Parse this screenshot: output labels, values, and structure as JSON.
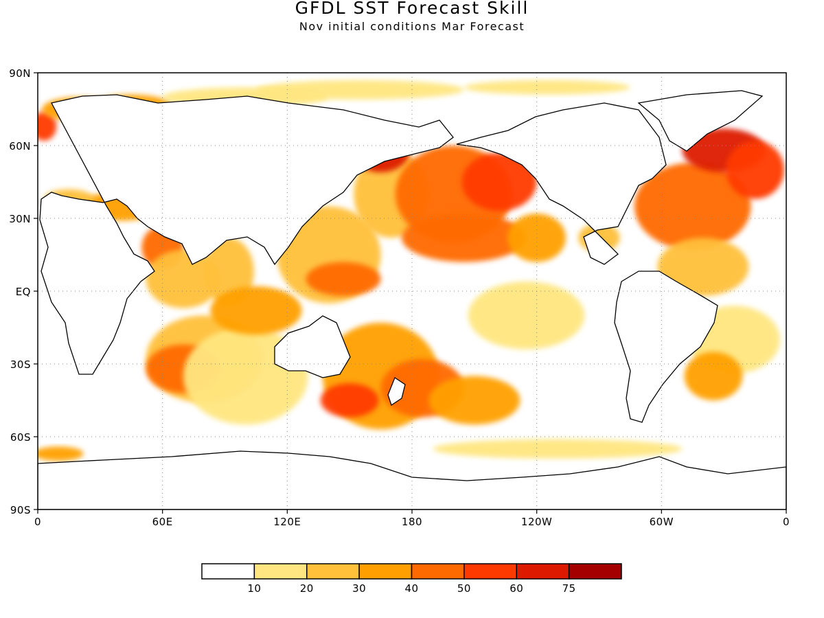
{
  "header": {
    "title": "GFDL SST Forecast Skill",
    "subtitle": "Nov initial conditions  Mar Forecast"
  },
  "axes": {
    "x_ticks": [
      "0",
      "60E",
      "120E",
      "180",
      "120W",
      "60W",
      "0"
    ],
    "y_ticks": [
      "90N",
      "60N",
      "30N",
      "EQ",
      "30S",
      "60S",
      "90S"
    ],
    "x_range": [
      0,
      360
    ],
    "y_range": [
      -90,
      90
    ],
    "grid": "dotted"
  },
  "colorbar": {
    "colors": [
      "#ffffff",
      "#ffe680",
      "#ffc03a",
      "#ffa000",
      "#ff6a00",
      "#ff3a00",
      "#dd1a00",
      "#a50000"
    ],
    "labels": [
      "10",
      "20",
      "30",
      "40",
      "50",
      "60",
      "75"
    ],
    "thresholds": [
      10,
      20,
      30,
      40,
      50,
      60,
      75
    ]
  },
  "map_data": {
    "variable": "SST forecast skill",
    "units": "",
    "blobs": [
      {
        "lon": 3,
        "lat": 68,
        "rx": 6,
        "ry": 6,
        "level": 5
      },
      {
        "lon": 20,
        "lat": 75,
        "rx": 18,
        "ry": 5,
        "level": 3
      },
      {
        "lon": 45,
        "lat": 75,
        "rx": 22,
        "ry": 6,
        "level": 3
      },
      {
        "lon": 100,
        "lat": 80,
        "rx": 40,
        "ry": 4,
        "level": 1
      },
      {
        "lon": 155,
        "lat": 83,
        "rx": 50,
        "ry": 4,
        "level": 1
      },
      {
        "lon": 245,
        "lat": 84,
        "rx": 40,
        "ry": 3,
        "level": 1
      },
      {
        "lon": 40,
        "lat": 35,
        "rx": 20,
        "ry": 6,
        "level": 3
      },
      {
        "lon": 15,
        "lat": 38,
        "rx": 12,
        "ry": 4,
        "level": 2
      },
      {
        "lon": 60,
        "lat": 18,
        "rx": 10,
        "ry": 9,
        "level": 4
      },
      {
        "lon": 70,
        "lat": 5,
        "rx": 18,
        "ry": 12,
        "level": 2
      },
      {
        "lon": 92,
        "lat": 8,
        "rx": 12,
        "ry": 14,
        "level": 2
      },
      {
        "lon": 80,
        "lat": -28,
        "rx": 28,
        "ry": 18,
        "level": 2
      },
      {
        "lon": 70,
        "lat": -32,
        "rx": 18,
        "ry": 10,
        "level": 4
      },
      {
        "lon": 100,
        "lat": -35,
        "rx": 30,
        "ry": 20,
        "level": 1
      },
      {
        "lon": 105,
        "lat": -8,
        "rx": 22,
        "ry": 10,
        "level": 3
      },
      {
        "lon": 140,
        "lat": 15,
        "rx": 25,
        "ry": 20,
        "level": 2
      },
      {
        "lon": 147,
        "lat": 5,
        "rx": 18,
        "ry": 7,
        "level": 4
      },
      {
        "lon": 170,
        "lat": 40,
        "rx": 18,
        "ry": 18,
        "level": 2
      },
      {
        "lon": 165,
        "lat": 58,
        "rx": 14,
        "ry": 9,
        "level": 6
      },
      {
        "lon": 200,
        "lat": 40,
        "rx": 28,
        "ry": 20,
        "level": 4
      },
      {
        "lon": 205,
        "lat": 22,
        "rx": 30,
        "ry": 10,
        "level": 4
      },
      {
        "lon": 222,
        "lat": 45,
        "rx": 18,
        "ry": 12,
        "level": 5
      },
      {
        "lon": 240,
        "lat": 22,
        "rx": 14,
        "ry": 10,
        "level": 3
      },
      {
        "lon": 165,
        "lat": -35,
        "rx": 28,
        "ry": 22,
        "level": 3
      },
      {
        "lon": 150,
        "lat": -45,
        "rx": 14,
        "ry": 7,
        "level": 5
      },
      {
        "lon": 185,
        "lat": -40,
        "rx": 20,
        "ry": 12,
        "level": 4
      },
      {
        "lon": 210,
        "lat": -45,
        "rx": 22,
        "ry": 10,
        "level": 3
      },
      {
        "lon": 235,
        "lat": -10,
        "rx": 28,
        "ry": 14,
        "level": 1
      },
      {
        "lon": 270,
        "lat": 22,
        "rx": 10,
        "ry": 6,
        "level": 2
      },
      {
        "lon": 315,
        "lat": 35,
        "rx": 28,
        "ry": 18,
        "level": 4
      },
      {
        "lon": 330,
        "lat": 58,
        "rx": 20,
        "ry": 9,
        "level": 6
      },
      {
        "lon": 345,
        "lat": 50,
        "rx": 14,
        "ry": 12,
        "level": 5
      },
      {
        "lon": 320,
        "lat": 10,
        "rx": 22,
        "ry": 12,
        "level": 2
      },
      {
        "lon": 335,
        "lat": -20,
        "rx": 22,
        "ry": 14,
        "level": 1
      },
      {
        "lon": 325,
        "lat": -35,
        "rx": 14,
        "ry": 10,
        "level": 3
      },
      {
        "lon": 250,
        "lat": -65,
        "rx": 60,
        "ry": 4,
        "level": 1
      },
      {
        "lon": 10,
        "lat": -67,
        "rx": 12,
        "ry": 3,
        "level": 3
      }
    ]
  }
}
